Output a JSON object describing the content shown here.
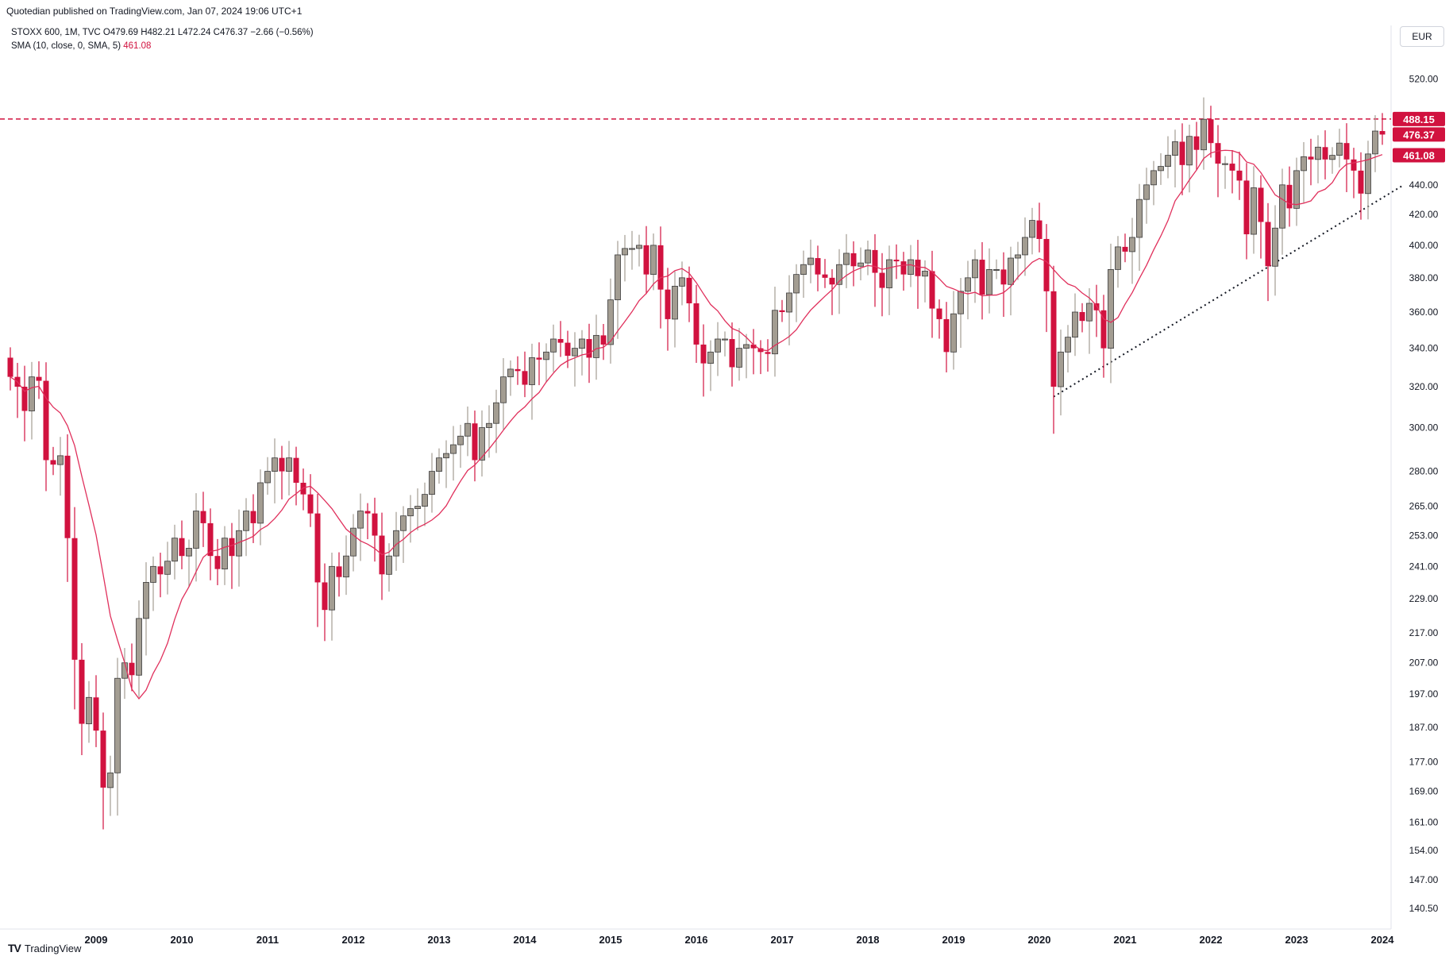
{
  "header": {
    "published": "Quotedian published on TradingView.com, Jan 07, 2024 19:06 UTC+1"
  },
  "legend": {
    "symbol_line": "STOXX 600, 1M, TVC  O479.69  H482.21  L472.24  C476.37  −2.66 (−0.56%)",
    "sma_label": "SMA (10, close, 0, SMA, 5)",
    "sma_value": "461.08"
  },
  "currency": "EUR",
  "brand": {
    "name": "TradingView",
    "logo": "TV"
  },
  "colors": {
    "up": "#a39d92",
    "down": "#d1123f",
    "sma": "#e0305c",
    "resistance": "#d1123f",
    "trendline": "#131722"
  },
  "chart_data": {
    "type": "candlestick",
    "title": "",
    "y_scale": "log",
    "ylim": [
      136,
      545
    ],
    "y_ticks": [
      "520.00",
      "440.00",
      "420.00",
      "400.00",
      "380.00",
      "360.00",
      "340.00",
      "320.00",
      "300.00",
      "280.00",
      "265.00",
      "253.00",
      "241.00",
      "229.00",
      "217.00",
      "207.00",
      "197.00",
      "187.00",
      "177.00",
      "169.00",
      "161.00",
      "154.00",
      "147.00",
      "140.50"
    ],
    "x_ticks": [
      "2009",
      "2010",
      "2011",
      "2012",
      "2013",
      "2014",
      "2015",
      "2016",
      "2017",
      "2018",
      "2019",
      "2020",
      "2021",
      "2022",
      "2023",
      "2024"
    ],
    "price_labels": [
      {
        "label": "488.15",
        "value": 488.15,
        "color": "#d1123f"
      },
      {
        "label": "476.37",
        "value": 476.37,
        "color": "#d1123f"
      },
      {
        "label": "461.08",
        "value": 461.08,
        "color": "#d1123f"
      }
    ],
    "resistance_level": 488.15,
    "trendline": {
      "from": [
        "2020-03",
        315
      ],
      "to": [
        "2024-04",
        440
      ]
    },
    "series": [
      {
        "name": "STOXX 600",
        "closes": [
          [
            "2008-01",
            325
          ],
          [
            "2008-02",
            320
          ],
          [
            "2008-03",
            308
          ],
          [
            "2008-04",
            325
          ],
          [
            "2008-05",
            323
          ],
          [
            "2008-06",
            285
          ],
          [
            "2008-07",
            283
          ],
          [
            "2008-08",
            287
          ],
          [
            "2008-09",
            252
          ],
          [
            "2008-10",
            208
          ],
          [
            "2008-11",
            188
          ],
          [
            "2008-12",
            196
          ],
          [
            "2009-01",
            186
          ],
          [
            "2009-02",
            170
          ],
          [
            "2009-03",
            174
          ],
          [
            "2009-04",
            202
          ],
          [
            "2009-05",
            207
          ],
          [
            "2009-06",
            203
          ],
          [
            "2009-07",
            222
          ],
          [
            "2009-08",
            235
          ],
          [
            "2009-09",
            241
          ],
          [
            "2009-10",
            238
          ],
          [
            "2009-11",
            243
          ],
          [
            "2009-12",
            252
          ],
          [
            "2010-01",
            245
          ],
          [
            "2010-02",
            248
          ],
          [
            "2010-03",
            263
          ],
          [
            "2010-04",
            258
          ],
          [
            "2010-05",
            245
          ],
          [
            "2010-06",
            240
          ],
          [
            "2010-07",
            252
          ],
          [
            "2010-08",
            245
          ],
          [
            "2010-09",
            255
          ],
          [
            "2010-10",
            263
          ],
          [
            "2010-11",
            258
          ],
          [
            "2010-12",
            275
          ],
          [
            "2011-01",
            280
          ],
          [
            "2011-02",
            286
          ],
          [
            "2011-03",
            280
          ],
          [
            "2011-04",
            286
          ],
          [
            "2011-05",
            275
          ],
          [
            "2011-06",
            270
          ],
          [
            "2011-07",
            262
          ],
          [
            "2011-08",
            235
          ],
          [
            "2011-09",
            225
          ],
          [
            "2011-10",
            241
          ],
          [
            "2011-11",
            237
          ],
          [
            "2011-12",
            245
          ],
          [
            "2012-01",
            256
          ],
          [
            "2012-02",
            263
          ],
          [
            "2012-03",
            262
          ],
          [
            "2012-04",
            253
          ],
          [
            "2012-05",
            238
          ],
          [
            "2012-06",
            245
          ],
          [
            "2012-07",
            255
          ],
          [
            "2012-08",
            261
          ],
          [
            "2012-09",
            264
          ],
          [
            "2012-10",
            265
          ],
          [
            "2012-11",
            270
          ],
          [
            "2012-12",
            280
          ],
          [
            "2013-01",
            286
          ],
          [
            "2013-02",
            288
          ],
          [
            "2013-03",
            292
          ],
          [
            "2013-04",
            296
          ],
          [
            "2013-05",
            302
          ],
          [
            "2013-06",
            285
          ],
          [
            "2013-07",
            300
          ],
          [
            "2013-08",
            302
          ],
          [
            "2013-09",
            312
          ],
          [
            "2013-10",
            325
          ],
          [
            "2013-11",
            329
          ],
          [
            "2013-12",
            328
          ],
          [
            "2014-01",
            321
          ],
          [
            "2014-02",
            335
          ],
          [
            "2014-03",
            334
          ],
          [
            "2014-04",
            338
          ],
          [
            "2014-05",
            345
          ],
          [
            "2014-06",
            343
          ],
          [
            "2014-07",
            336
          ],
          [
            "2014-08",
            340
          ],
          [
            "2014-09",
            345
          ],
          [
            "2014-10",
            335
          ],
          [
            "2014-11",
            347
          ],
          [
            "2014-12",
            342
          ],
          [
            "2015-01",
            367
          ],
          [
            "2015-02",
            394
          ],
          [
            "2015-03",
            398
          ],
          [
            "2015-04",
            398
          ],
          [
            "2015-05",
            400
          ],
          [
            "2015-06",
            382
          ],
          [
            "2015-07",
            400
          ],
          [
            "2015-08",
            373
          ],
          [
            "2015-09",
            356
          ],
          [
            "2015-10",
            375
          ],
          [
            "2015-11",
            380
          ],
          [
            "2015-12",
            365
          ],
          [
            "2016-01",
            342
          ],
          [
            "2016-02",
            332
          ],
          [
            "2016-03",
            338
          ],
          [
            "2016-04",
            345
          ],
          [
            "2016-05",
            345
          ],
          [
            "2016-06",
            330
          ],
          [
            "2016-07",
            340
          ],
          [
            "2016-08",
            342
          ],
          [
            "2016-09",
            340
          ],
          [
            "2016-10",
            338
          ],
          [
            "2016-11",
            337
          ],
          [
            "2016-12",
            361
          ],
          [
            "2017-01",
            360
          ],
          [
            "2017-02",
            371
          ],
          [
            "2017-03",
            382
          ],
          [
            "2017-04",
            388
          ],
          [
            "2017-05",
            392
          ],
          [
            "2017-06",
            382
          ],
          [
            "2017-07",
            380
          ],
          [
            "2017-08",
            376
          ],
          [
            "2017-09",
            388
          ],
          [
            "2017-10",
            395
          ],
          [
            "2017-11",
            387
          ],
          [
            "2017-12",
            389
          ],
          [
            "2018-01",
            397
          ],
          [
            "2018-02",
            383
          ],
          [
            "2018-03",
            374
          ],
          [
            "2018-04",
            391
          ],
          [
            "2018-05",
            390
          ],
          [
            "2018-06",
            382
          ],
          [
            "2018-07",
            391
          ],
          [
            "2018-08",
            381
          ],
          [
            "2018-09",
            384
          ],
          [
            "2018-10",
            362
          ],
          [
            "2018-11",
            356
          ],
          [
            "2018-12",
            338
          ],
          [
            "2019-01",
            359
          ],
          [
            "2019-02",
            372
          ],
          [
            "2019-03",
            380
          ],
          [
            "2019-04",
            391
          ],
          [
            "2019-05",
            370
          ],
          [
            "2019-06",
            385
          ],
          [
            "2019-07",
            385
          ],
          [
            "2019-08",
            376
          ],
          [
            "2019-09",
            392
          ],
          [
            "2019-10",
            394
          ],
          [
            "2019-11",
            405
          ],
          [
            "2019-12",
            416
          ],
          [
            "2020-01",
            404
          ],
          [
            "2020-02",
            372
          ],
          [
            "2020-03",
            320
          ],
          [
            "2020-04",
            338
          ],
          [
            "2020-05",
            346
          ],
          [
            "2020-06",
            360
          ],
          [
            "2020-07",
            355
          ],
          [
            "2020-08",
            365
          ],
          [
            "2020-09",
            361
          ],
          [
            "2020-10",
            340
          ],
          [
            "2020-11",
            385
          ],
          [
            "2020-12",
            399
          ],
          [
            "2021-01",
            396
          ],
          [
            "2021-02",
            405
          ],
          [
            "2021-03",
            430
          ],
          [
            "2021-04",
            440
          ],
          [
            "2021-05",
            450
          ],
          [
            "2021-06",
            453
          ],
          [
            "2021-07",
            461
          ],
          [
            "2021-08",
            471
          ],
          [
            "2021-09",
            454
          ],
          [
            "2021-10",
            475
          ],
          [
            "2021-11",
            465
          ],
          [
            "2021-12",
            488
          ],
          [
            "2022-01",
            470
          ],
          [
            "2022-02",
            455
          ],
          [
            "2022-03",
            455
          ],
          [
            "2022-04",
            450
          ],
          [
            "2022-05",
            443
          ],
          [
            "2022-06",
            407
          ],
          [
            "2022-07",
            438
          ],
          [
            "2022-08",
            415
          ],
          [
            "2022-09",
            387
          ],
          [
            "2022-10",
            411
          ],
          [
            "2022-11",
            440
          ],
          [
            "2022-12",
            424
          ],
          [
            "2023-01",
            450
          ],
          [
            "2023-02",
            460
          ],
          [
            "2023-03",
            458
          ],
          [
            "2023-04",
            467
          ],
          [
            "2023-05",
            458
          ],
          [
            "2023-06",
            461
          ],
          [
            "2023-07",
            470
          ],
          [
            "2023-08",
            458
          ],
          [
            "2023-09",
            450
          ],
          [
            "2023-10",
            434
          ],
          [
            "2023-11",
            462
          ],
          [
            "2023-12",
            479
          ],
          [
            "2024-01",
            476.37
          ]
        ]
      },
      {
        "name": "SMA (10, close, 0, SMA, 5)",
        "last": 461.08
      }
    ]
  }
}
